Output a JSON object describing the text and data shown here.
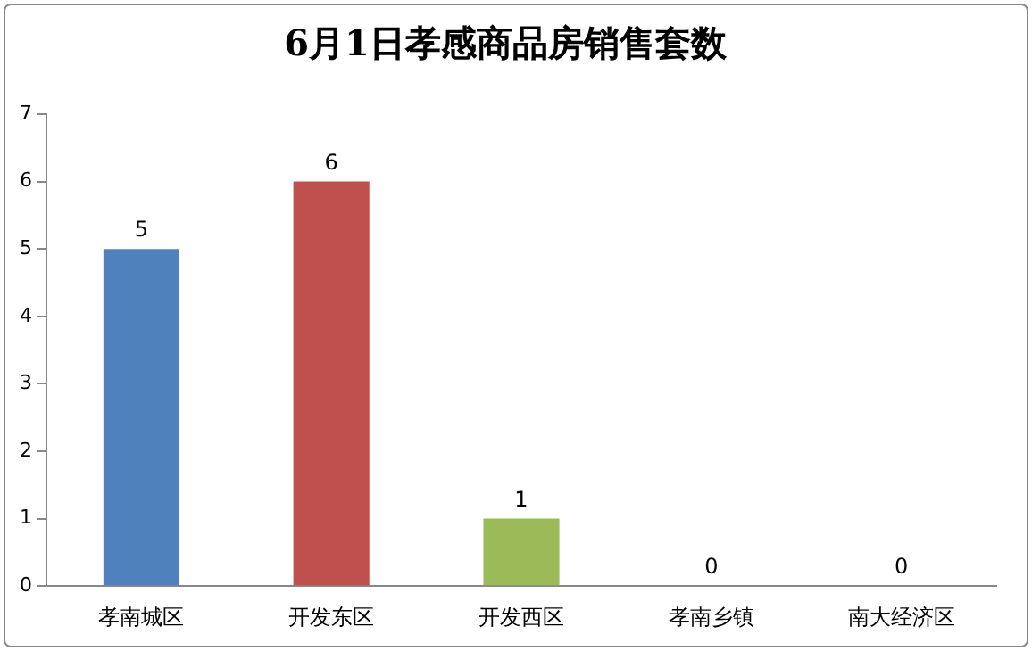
{
  "chart_data": {
    "type": "bar",
    "title": "6月1日孝感商品房销售套数",
    "categories": [
      "孝南城区",
      "开发东区",
      "开发西区",
      "孝南乡镇",
      "南大经济区"
    ],
    "values": [
      5,
      6,
      1,
      0,
      0
    ],
    "colors": [
      "#4f81bd",
      "#c0504d",
      "#9bbb59",
      "#8064a2",
      "#4bacc6"
    ],
    "ylim": [
      0,
      7
    ],
    "yticks": [
      0,
      1,
      2,
      3,
      4,
      5,
      6,
      7
    ],
    "grid": false,
    "legend": false,
    "data_labels": true
  }
}
